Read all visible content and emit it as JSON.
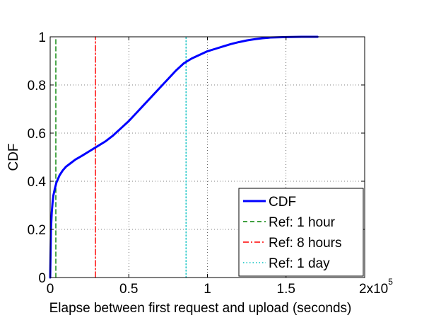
{
  "chart_data": {
    "type": "line",
    "title": "",
    "xlabel": "Elapse between first request and upload (seconds)",
    "ylabel": "CDF",
    "xlim": [
      0,
      2
    ],
    "ylim": [
      0,
      1
    ],
    "x_ticks": [
      0,
      0.5,
      1,
      1.5,
      2
    ],
    "x_tick_labels": [
      "0",
      "0.5",
      "1",
      "1.5",
      "2"
    ],
    "x_exponent_label": {
      "base": "x10",
      "exponent": "5"
    },
    "y_ticks": [
      0,
      0.2,
      0.4,
      0.6,
      0.8,
      1
    ],
    "y_tick_labels": [
      "0",
      "0.2",
      "0.4",
      "0.6",
      "0.8",
      "1"
    ],
    "grid": true,
    "legend_position": "bottom-right",
    "series": [
      {
        "name": "CDF",
        "color": "#0000ff",
        "style": "solid",
        "x": [
          0,
          0.002,
          0.005,
          0.01,
          0.015,
          0.02,
          0.03,
          0.04,
          0.05,
          0.06,
          0.08,
          0.1,
          0.13,
          0.16,
          0.2,
          0.25,
          0.3,
          0.35,
          0.4,
          0.45,
          0.5,
          0.55,
          0.6,
          0.65,
          0.7,
          0.75,
          0.8,
          0.85,
          0.9,
          0.95,
          1.0,
          1.05,
          1.1,
          1.15,
          1.2,
          1.25,
          1.3,
          1.35,
          1.4,
          1.5,
          1.6,
          1.7
        ],
        "y": [
          0,
          0.08,
          0.2,
          0.27,
          0.31,
          0.34,
          0.37,
          0.395,
          0.41,
          0.425,
          0.445,
          0.46,
          0.475,
          0.49,
          0.505,
          0.525,
          0.545,
          0.565,
          0.59,
          0.62,
          0.65,
          0.685,
          0.72,
          0.755,
          0.79,
          0.825,
          0.86,
          0.89,
          0.91,
          0.925,
          0.94,
          0.95,
          0.96,
          0.97,
          0.978,
          0.985,
          0.99,
          0.994,
          0.997,
          0.999,
          1.0,
          1.0
        ]
      },
      {
        "name": "Ref: 1 hour",
        "color": "#008000",
        "style": "dashed",
        "x": [
          0.036,
          0.036
        ],
        "y": [
          0,
          1
        ]
      },
      {
        "name": "Ref: 8 hours",
        "color": "#ff0000",
        "style": "dashdot",
        "x": [
          0.288,
          0.288
        ],
        "y": [
          0,
          1
        ]
      },
      {
        "name": "Ref: 1 day",
        "color": "#00bfbf",
        "style": "dotted",
        "x": [
          0.864,
          0.864
        ],
        "y": [
          0,
          1
        ]
      }
    ]
  }
}
